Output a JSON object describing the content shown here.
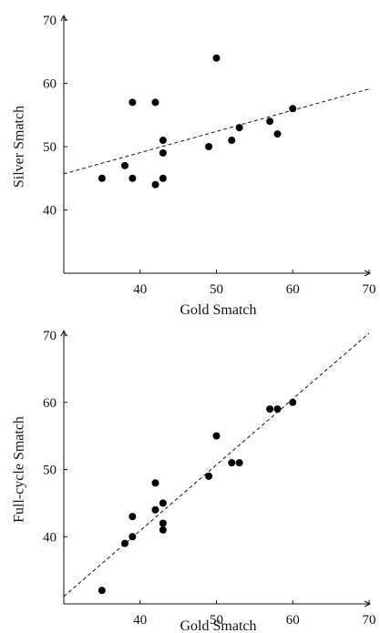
{
  "chart_data": [
    {
      "type": "scatter",
      "xlabel": "Gold Smatch",
      "ylabel": "Silver Smatch",
      "xlim": [
        30,
        70
      ],
      "ylim": [
        30,
        70
      ],
      "xticks": [
        40,
        50,
        60,
        70
      ],
      "yticks": [
        40,
        50,
        60,
        70
      ],
      "grid": false,
      "points": [
        {
          "x": 35,
          "y": 45
        },
        {
          "x": 38,
          "y": 47
        },
        {
          "x": 39,
          "y": 45
        },
        {
          "x": 39,
          "y": 57
        },
        {
          "x": 42,
          "y": 57
        },
        {
          "x": 42,
          "y": 44
        },
        {
          "x": 43,
          "y": 45
        },
        {
          "x": 43,
          "y": 49
        },
        {
          "x": 43,
          "y": 51
        },
        {
          "x": 49,
          "y": 50
        },
        {
          "x": 50,
          "y": 64
        },
        {
          "x": 52,
          "y": 51
        },
        {
          "x": 53,
          "y": 53
        },
        {
          "x": 57,
          "y": 54
        },
        {
          "x": 58,
          "y": 52
        },
        {
          "x": 60,
          "y": 56
        }
      ],
      "trendline": {
        "style": "dashed",
        "x": [
          30,
          70
        ],
        "y": [
          45.7,
          59.1
        ]
      }
    },
    {
      "type": "scatter",
      "xlabel": "Gold Smatch",
      "ylabel": "Full-cycle Smatch",
      "xlim": [
        30,
        70
      ],
      "ylim": [
        30,
        70
      ],
      "xticks": [
        40,
        50,
        60,
        70
      ],
      "yticks": [
        40,
        50,
        60,
        70
      ],
      "grid": false,
      "points": [
        {
          "x": 35,
          "y": 32
        },
        {
          "x": 38,
          "y": 39
        },
        {
          "x": 39,
          "y": 40
        },
        {
          "x": 39,
          "y": 43
        },
        {
          "x": 42,
          "y": 44
        },
        {
          "x": 42,
          "y": 48
        },
        {
          "x": 43,
          "y": 45
        },
        {
          "x": 43,
          "y": 42
        },
        {
          "x": 43,
          "y": 41
        },
        {
          "x": 49,
          "y": 49
        },
        {
          "x": 50,
          "y": 55
        },
        {
          "x": 52,
          "y": 51
        },
        {
          "x": 53,
          "y": 51
        },
        {
          "x": 57,
          "y": 59
        },
        {
          "x": 58,
          "y": 59
        },
        {
          "x": 60,
          "y": 60
        }
      ],
      "trendline": {
        "style": "dashed",
        "x": [
          30,
          70
        ],
        "y": [
          31.1,
          70.3
        ]
      }
    }
  ]
}
